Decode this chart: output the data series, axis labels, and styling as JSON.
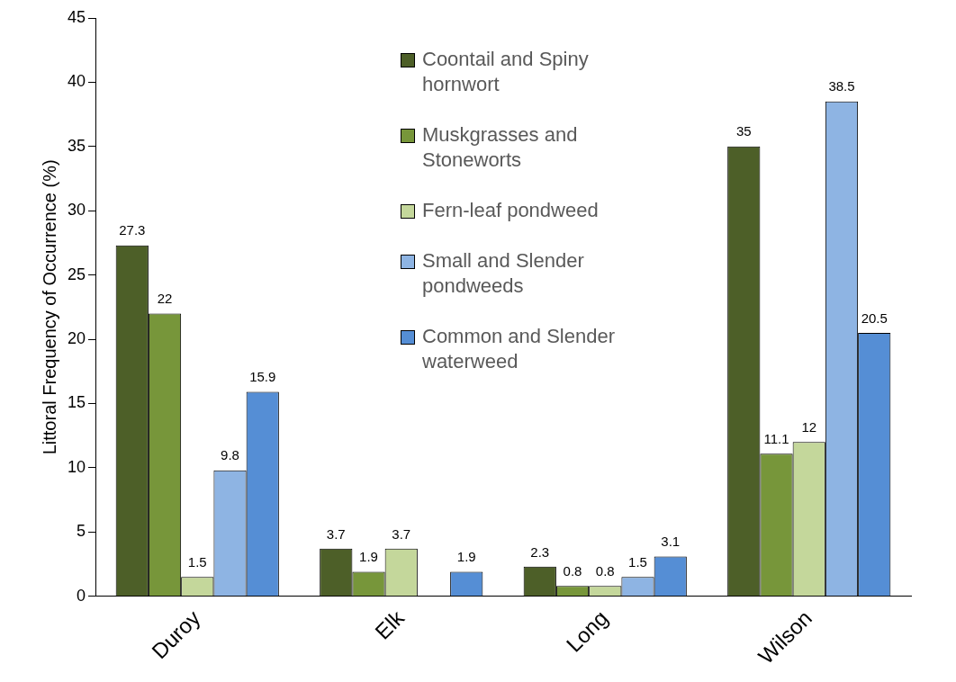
{
  "chart_data": {
    "type": "bar",
    "ylabel": "Littoral Frequency of Occurrence (%)",
    "categories": [
      "Duroy",
      "Elk",
      "Long",
      "Wilson"
    ],
    "series": [
      {
        "name": "Coontail and Spiny hornwort",
        "color": "#4d5f28",
        "values": [
          27.3,
          3.7,
          2.3,
          35
        ]
      },
      {
        "name": "Muskgrasses and Stoneworts",
        "color": "#77963a",
        "values": [
          22,
          1.9,
          0.8,
          11.1
        ]
      },
      {
        "name": "Fern-leaf pondweed",
        "color": "#c4d79b",
        "values": [
          1.5,
          3.7,
          0.8,
          12
        ]
      },
      {
        "name": "Small and Slender pondweeds",
        "color": "#8eb4e3",
        "values": [
          9.8,
          null,
          1.5,
          38.5
        ]
      },
      {
        "name": "Common and Slender waterweed",
        "color": "#558ed5",
        "values": [
          15.9,
          1.9,
          3.1,
          20.5
        ]
      }
    ],
    "ylim": [
      0,
      45
    ],
    "yticks": [
      0,
      5,
      10,
      15,
      20,
      25,
      30,
      35,
      40,
      45
    ],
    "grid": false,
    "legend": "top",
    "data_labels": true
  }
}
